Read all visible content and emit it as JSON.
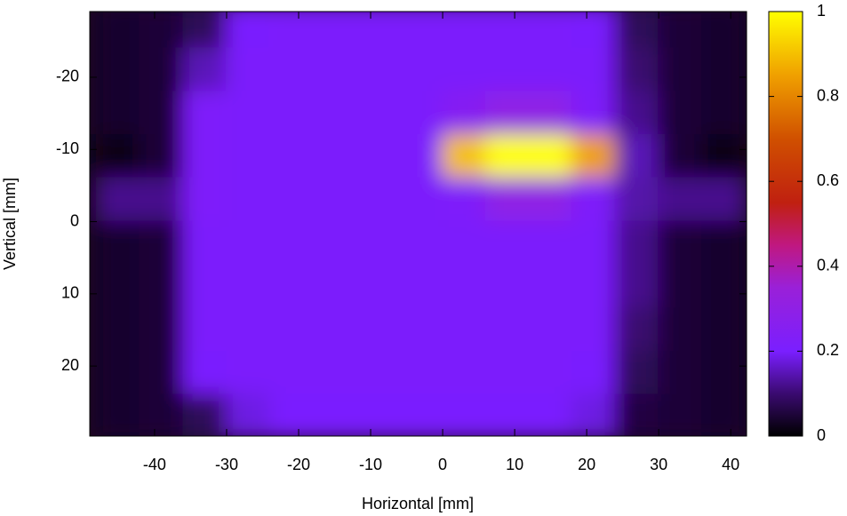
{
  "chart_data": {
    "type": "heatmap",
    "x_label": "Horizontal [mm]",
    "y_label": "Vertical [mm]",
    "x": [
      -45,
      -39,
      -33,
      -27,
      -21,
      -15,
      -9,
      -3,
      3,
      9,
      15,
      21,
      27,
      33,
      39
    ],
    "y": [
      -27,
      -21,
      -15,
      -9,
      -3,
      3,
      9,
      15,
      21,
      27
    ],
    "z": [
      [
        0.04,
        0.05,
        0.08,
        0.2,
        0.21,
        0.21,
        0.21,
        0.21,
        0.21,
        0.21,
        0.21,
        0.2,
        0.08,
        0.05,
        0.04
      ],
      [
        0.04,
        0.05,
        0.15,
        0.21,
        0.21,
        0.21,
        0.21,
        0.21,
        0.21,
        0.21,
        0.21,
        0.21,
        0.1,
        0.05,
        0.04
      ],
      [
        0.04,
        0.05,
        0.22,
        0.21,
        0.21,
        0.21,
        0.21,
        0.21,
        0.25,
        0.3,
        0.3,
        0.22,
        0.12,
        0.05,
        0.04
      ],
      [
        0.02,
        0.05,
        0.22,
        0.21,
        0.21,
        0.21,
        0.21,
        0.21,
        0.9,
        1,
        1,
        0.85,
        0.15,
        0.05,
        0.02
      ],
      [
        0.12,
        0.12,
        0.22,
        0.21,
        0.21,
        0.21,
        0.21,
        0.21,
        0.22,
        0.3,
        0.3,
        0.22,
        0.14,
        0.12,
        0.12
      ],
      [
        0.04,
        0.05,
        0.21,
        0.21,
        0.21,
        0.21,
        0.21,
        0.21,
        0.21,
        0.21,
        0.21,
        0.21,
        0.12,
        0.05,
        0.04
      ],
      [
        0.04,
        0.05,
        0.21,
        0.21,
        0.21,
        0.21,
        0.21,
        0.21,
        0.21,
        0.21,
        0.21,
        0.21,
        0.12,
        0.05,
        0.04
      ],
      [
        0.04,
        0.05,
        0.21,
        0.21,
        0.21,
        0.21,
        0.21,
        0.21,
        0.21,
        0.21,
        0.21,
        0.21,
        0.1,
        0.05,
        0.04
      ],
      [
        0.04,
        0.05,
        0.2,
        0.21,
        0.21,
        0.21,
        0.21,
        0.21,
        0.21,
        0.21,
        0.21,
        0.2,
        0.08,
        0.05,
        0.04
      ],
      [
        0.04,
        0.05,
        0.08,
        0.18,
        0.2,
        0.2,
        0.2,
        0.2,
        0.2,
        0.2,
        0.2,
        0.18,
        0.06,
        0.05,
        0.04
      ]
    ],
    "xlim": [
      -49,
      42.2
    ],
    "ylim": [
      29.7,
      -29.1
    ],
    "xticks": [
      -40,
      -30,
      -20,
      -10,
      0,
      10,
      20,
      30,
      40
    ],
    "yticks": [
      -20,
      -10,
      0,
      10,
      20
    ],
    "colorbar_lim": [
      0,
      1
    ],
    "colorbar_ticks": [
      0,
      0.2,
      0.4,
      0.6,
      0.8,
      1
    ]
  }
}
